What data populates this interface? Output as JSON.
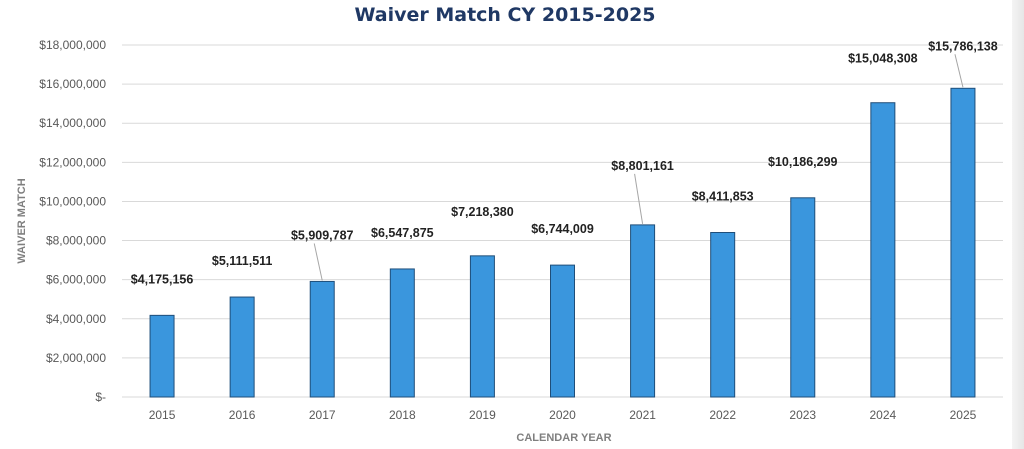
{
  "chart_data": {
    "type": "bar",
    "title": "Waiver Match CY 2015-2025",
    "xlabel": "CALENDAR YEAR",
    "ylabel": "WAIVER MATCH",
    "categories": [
      "2015",
      "2016",
      "2017",
      "2018",
      "2019",
      "2020",
      "2021",
      "2022",
      "2023",
      "2024",
      "2025"
    ],
    "values": [
      4175156,
      5111511,
      5909787,
      6547875,
      7218380,
      6744009,
      8801161,
      8411853,
      10186299,
      15048308,
      15786138
    ],
    "data_labels": [
      "$4,175,156",
      "$5,111,511",
      "$5,909,787",
      "$6,547,875",
      "$7,218,380",
      "$6,744,009",
      "$8,801,161",
      "$8,411,853",
      "$10,186,299",
      "$15,048,308",
      "$15,786,138"
    ],
    "ylim": [
      0,
      18000000
    ],
    "yticks": [
      0,
      2000000,
      4000000,
      6000000,
      8000000,
      10000000,
      12000000,
      14000000,
      16000000,
      18000000
    ],
    "ytick_labels": [
      "$-",
      "$2,000,000",
      "$4,000,000",
      "$6,000,000",
      "$8,000,000",
      "$10,000,000",
      "$12,000,000",
      "$14,000,000",
      "$16,000,000",
      "$18,000,000"
    ],
    "grid": true,
    "bar_color": "#3a96dd",
    "bar_edge_color": "#1f4e79",
    "title_color": "#1f3864"
  }
}
